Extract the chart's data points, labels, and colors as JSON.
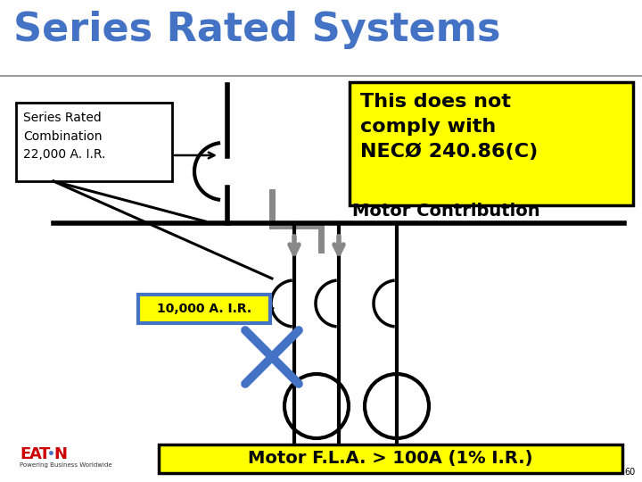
{
  "title": "Series Rated Systems",
  "title_color": "#4472C4",
  "title_fontsize": 32,
  "bg_color": "#FFFFFF",
  "yellow_box_text": "This does not\ncomply with\nNECØ 240.86(C)",
  "yellow_box_color": "#FFFF00",
  "yellow_box_border": "#000000",
  "motor_contribution_text": "Motor Contribution",
  "series_rated_label": "Series Rated\nCombination\n22,000 A. I.R.",
  "air_label": "10,000 A. I.R.",
  "air_box_color": "#FFFF00",
  "air_box_border": "#4472C4",
  "bottom_box_text": "Motor F.L.A. > 100A (1% I.R.)",
  "bottom_box_color": "#FFFF00",
  "bottom_box_border": "#000000",
  "gray_color": "#888888",
  "blue_x_color": "#4472C4",
  "black_color": "#000000",
  "slide_number": "60",
  "title_separator_color": "#888888"
}
